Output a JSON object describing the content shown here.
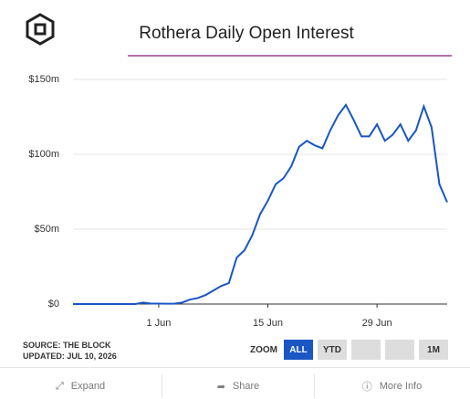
{
  "chart_data": {
    "type": "line",
    "title": "Rothera Daily Open Interest",
    "x": [
      -11,
      -10,
      -9,
      -8,
      -7,
      -6,
      -5,
      -4,
      -3,
      -2,
      -1,
      0,
      1,
      2,
      3,
      4,
      5,
      6,
      7,
      8,
      9,
      10,
      11,
      12,
      13,
      14,
      15,
      16,
      17,
      18,
      19,
      20,
      21,
      22,
      23,
      24,
      25,
      26,
      27,
      28,
      29,
      30,
      31,
      32,
      33,
      34,
      35,
      36,
      37
    ],
    "series": [
      {
        "name": "Open Interest",
        "color": "#1a56c4",
        "values": [
          0,
          0,
          0,
          0,
          0,
          0,
          0,
          0,
          0,
          1,
          0.3,
          0.3,
          0.2,
          0.2,
          1,
          3,
          4,
          6,
          9,
          12,
          14,
          31,
          36,
          46,
          60,
          69,
          80,
          84,
          92,
          105,
          109,
          106,
          104,
          116,
          126,
          133,
          123,
          112,
          112,
          120,
          109,
          113,
          120,
          109,
          116,
          132,
          118,
          80,
          68
        ]
      }
    ],
    "xlim": [
      -11,
      37
    ],
    "xticks": [
      {
        "value": 0,
        "label": "1 Jun"
      },
      {
        "value": 14,
        "label": "15 Jun"
      },
      {
        "value": 28,
        "label": "29 Jun"
      }
    ],
    "ylim": [
      0,
      150
    ],
    "yticks": [
      {
        "value": 0,
        "label": "$0"
      },
      {
        "value": 50,
        "label": "$50m"
      },
      {
        "value": 100,
        "label": "$100m"
      },
      {
        "value": 150,
        "label": "$150m"
      }
    ],
    "grid": true
  },
  "source": "SOURCE: THE BLOCK",
  "updated": "UPDATED: JUL 10, 2026",
  "zoom_label": "ZOOM",
  "zoom_buttons": [
    "ALL",
    "YTD",
    "1M"
  ],
  "actions": [
    "Expand",
    "Share",
    "More Info"
  ]
}
